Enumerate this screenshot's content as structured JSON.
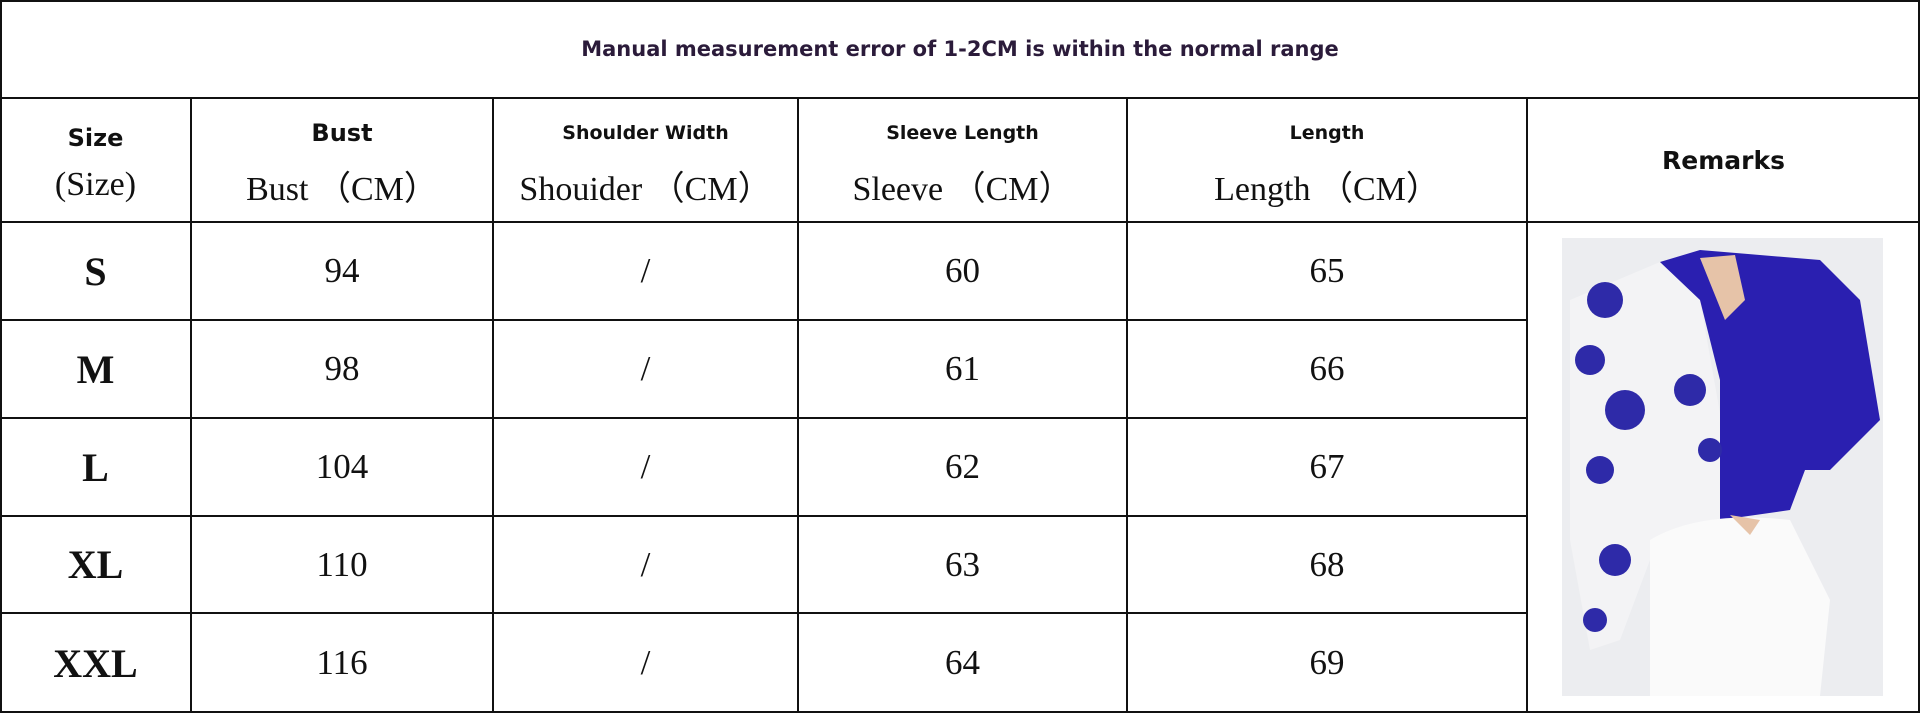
{
  "title": "Manual measurement error of 1-2CM is within the normal range",
  "table": {
    "headers": [
      {
        "top": "Size",
        "bottom": "(Size)"
      },
      {
        "top": "Bust",
        "bottom": "Bust （CM）"
      },
      {
        "top": "Shoulder Width",
        "bottom": "Shouider （CM）"
      },
      {
        "top": "Sleeve Length",
        "bottom": "Sleeve （CM）"
      },
      {
        "top": "Length",
        "bottom": "Length （CM）"
      }
    ],
    "remarks": "Remarks",
    "rows": [
      [
        "S",
        94,
        "/",
        60,
        65
      ],
      [
        "M",
        98,
        "/",
        61,
        66
      ],
      [
        "L",
        104,
        "/",
        62,
        67
      ],
      [
        "XL",
        110,
        "/",
        63,
        68
      ],
      [
        "XXL",
        116,
        "/",
        64,
        69
      ]
    ]
  }
}
